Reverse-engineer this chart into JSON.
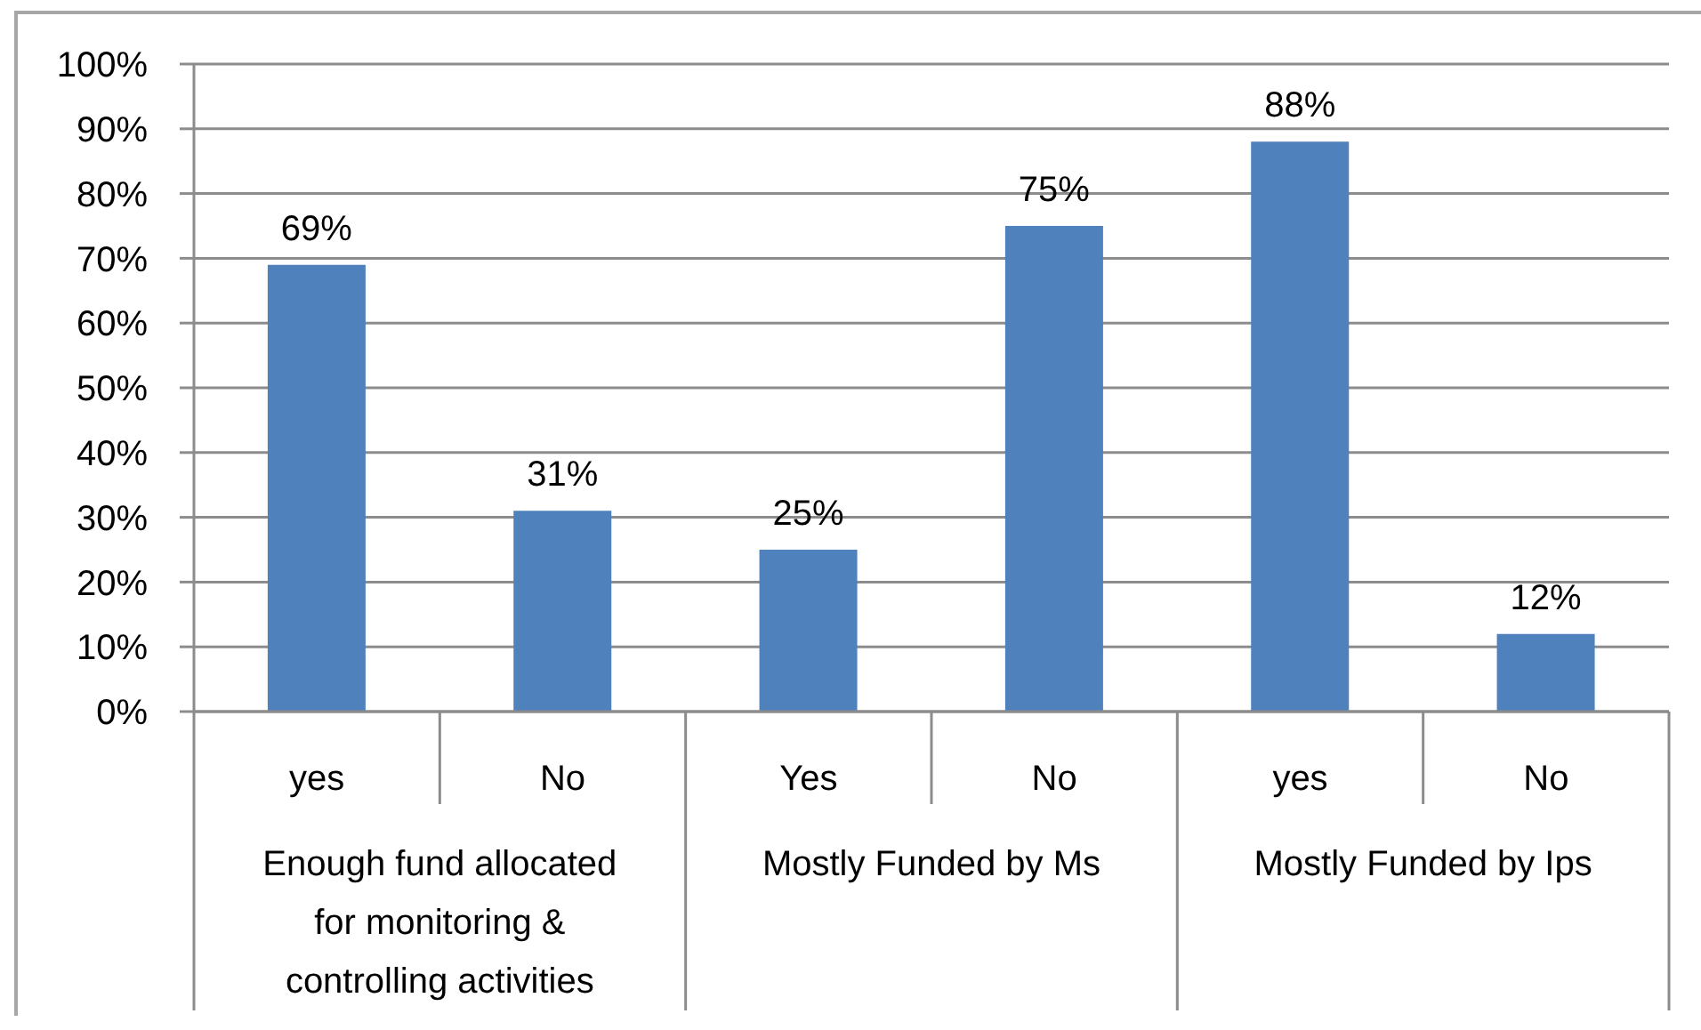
{
  "chart_data": {
    "type": "bar",
    "categories": [
      "yes",
      "No",
      "Yes",
      "No",
      "yes",
      "No"
    ],
    "values": [
      69,
      31,
      25,
      75,
      88,
      12
    ],
    "color": "#4f81bd",
    "value_labels": [
      "69%",
      "31%",
      "25%",
      "75%",
      "88%",
      "12%"
    ],
    "ylim": [
      0,
      100
    ],
    "yticks": [
      {
        "value": 0,
        "label": "0%"
      },
      {
        "value": 10,
        "label": "10%"
      },
      {
        "value": 20,
        "label": "20%"
      },
      {
        "value": 30,
        "label": "30%"
      },
      {
        "value": 40,
        "label": "40%"
      },
      {
        "value": 50,
        "label": "50%"
      },
      {
        "value": 60,
        "label": "60%"
      },
      {
        "value": 70,
        "label": "70%"
      },
      {
        "value": 80,
        "label": "80%"
      },
      {
        "value": 90,
        "label": "90%"
      },
      {
        "value": 100,
        "label": "100%"
      }
    ],
    "grid": "y",
    "annotations": [
      "Enough fund allocated for monitoring & controlling activities",
      "Mostly Funded by Ms",
      "Mostly Funded by Ips"
    ]
  }
}
